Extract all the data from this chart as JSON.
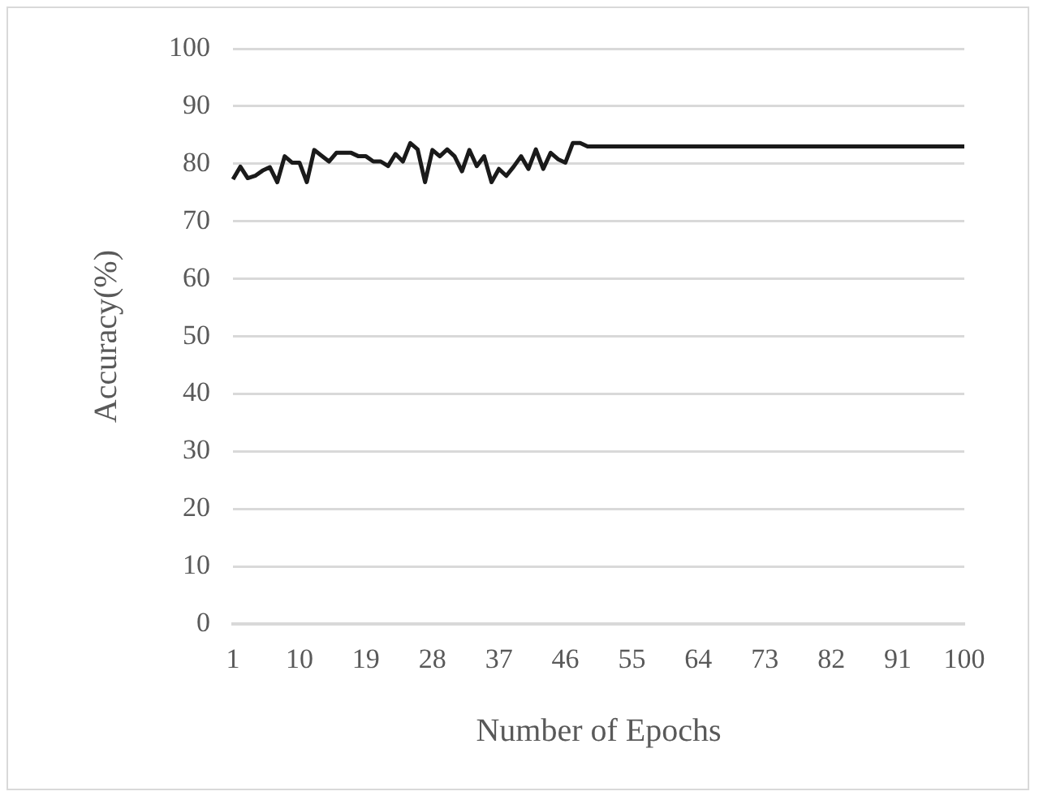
{
  "chart_data": {
    "type": "line",
    "xlabel": "Number of Epochs",
    "ylabel": "Accuracy(%)",
    "categories": [
      "1",
      null,
      null,
      null,
      null,
      null,
      null,
      null,
      null,
      "10",
      null,
      null,
      null,
      null,
      null,
      null,
      null,
      null,
      "19",
      null,
      null,
      null,
      null,
      null,
      null,
      null,
      null,
      "28",
      null,
      null,
      null,
      null,
      null,
      null,
      null,
      null,
      "37",
      null,
      null,
      null,
      null,
      null,
      null,
      null,
      null,
      "46",
      null,
      null,
      null,
      null,
      null,
      null,
      null,
      null,
      "55",
      null,
      null,
      null,
      null,
      null,
      null,
      null,
      null,
      "64",
      null,
      null,
      null,
      null,
      null,
      null,
      null,
      null,
      "73",
      null,
      null,
      null,
      null,
      null,
      null,
      null,
      null,
      "82",
      null,
      null,
      null,
      null,
      null,
      null,
      null,
      null,
      "91",
      null,
      null,
      null,
      null,
      null,
      null,
      null,
      null,
      "100"
    ],
    "series": [
      {
        "color": "#1a1a1a",
        "values": [
          77.3,
          79.5,
          77.5,
          77.9,
          78.8,
          79.4,
          76.8,
          81.3,
          80.2,
          80.2,
          76.8,
          82.4,
          81.4,
          80.4,
          81.9,
          81.9,
          81.9,
          81.3,
          81.3,
          80.4,
          80.4,
          79.6,
          81.7,
          80.4,
          83.6,
          82.5,
          76.8,
          82.4,
          81.3,
          82.5,
          81.3,
          78.7,
          82.4,
          79.6,
          81.3,
          76.8,
          79.1,
          77.9,
          79.5,
          81.3,
          79.1,
          82.5,
          79.1,
          81.9,
          80.8,
          80.2,
          83.6,
          83.6,
          83,
          83,
          83,
          83,
          83,
          83,
          83,
          83,
          83,
          83,
          83,
          83,
          83,
          83,
          83,
          83,
          83,
          83,
          83,
          83,
          83,
          83,
          83,
          83,
          83,
          83,
          83,
          83,
          83,
          83,
          83,
          83,
          83,
          83,
          83,
          83,
          83,
          83,
          83,
          83,
          83,
          83,
          83,
          83,
          83,
          83,
          83,
          83,
          83,
          83,
          83,
          83
        ]
      }
    ],
    "ylim": [
      0,
      100
    ],
    "yticks": [
      0,
      10,
      20,
      30,
      40,
      50,
      60,
      70,
      80,
      90,
      100
    ],
    "grid": "y",
    "legend": false,
    "marker": "none",
    "line_style": "solid"
  }
}
